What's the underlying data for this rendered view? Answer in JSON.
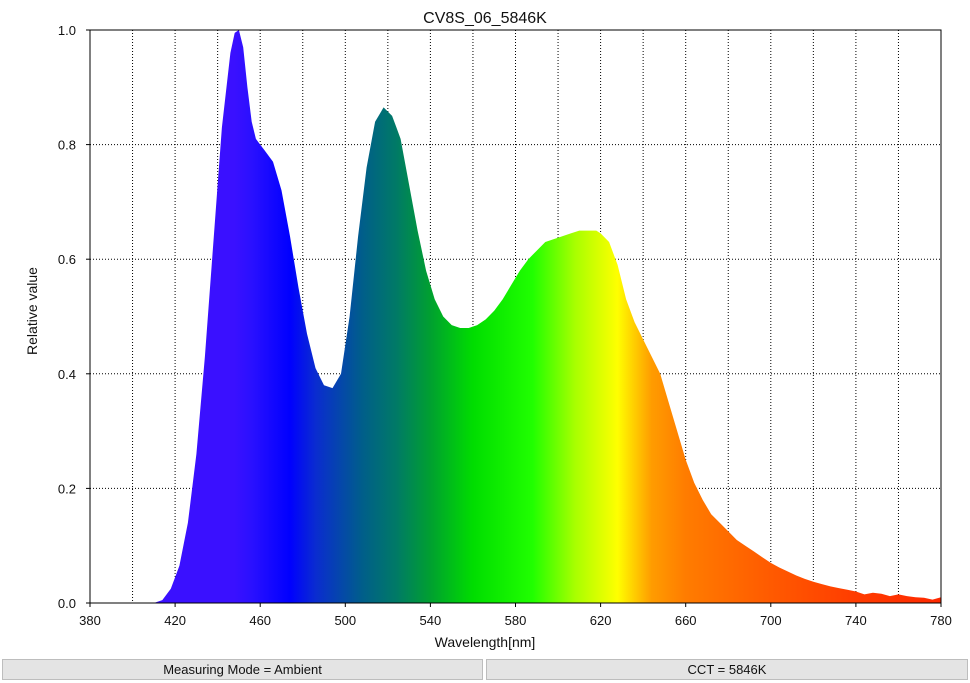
{
  "chart_data": {
    "type": "area",
    "title": "CV8S_06_5846K",
    "xlabel": "Wavelength[nm]",
    "ylabel": "Relative value",
    "xlim": [
      380,
      780
    ],
    "ylim": [
      0,
      1.0
    ],
    "xticks": [
      "380",
      "420",
      "460",
      "500",
      "540",
      "580",
      "620",
      "660",
      "700",
      "740",
      "780"
    ],
    "yticks": [
      "0.0",
      "0.2",
      "0.4",
      "0.6",
      "0.8",
      "1.0"
    ],
    "grid": true,
    "fill": "visible-spectrum gradient",
    "series": [
      {
        "x": [
          380,
          410,
          414,
          418,
          422,
          426,
          430,
          434,
          438,
          442,
          446,
          448,
          450,
          452,
          454,
          456,
          458,
          460,
          462,
          466,
          470,
          474,
          478,
          482,
          486,
          490,
          494,
          498,
          502,
          506,
          510,
          514,
          518,
          522,
          524,
          526,
          530,
          534,
          538,
          542,
          546,
          550,
          554,
          558,
          562,
          566,
          570,
          574,
          578,
          582,
          586,
          590,
          594,
          598,
          602,
          606,
          610,
          614,
          618,
          620,
          624,
          628,
          632,
          636,
          640,
          644,
          648,
          652,
          656,
          660,
          664,
          668,
          672,
          676,
          680,
          684,
          688,
          692,
          696,
          700,
          704,
          708,
          712,
          716,
          720,
          724,
          728,
          732,
          736,
          740,
          744,
          748,
          752,
          756,
          760,
          764,
          768,
          772,
          776,
          780
        ],
        "y": [
          0,
          0,
          0.005,
          0.025,
          0.065,
          0.14,
          0.26,
          0.43,
          0.63,
          0.83,
          0.96,
          0.995,
          1.0,
          0.97,
          0.9,
          0.84,
          0.81,
          0.8,
          0.79,
          0.77,
          0.72,
          0.64,
          0.55,
          0.47,
          0.41,
          0.38,
          0.375,
          0.4,
          0.5,
          0.64,
          0.76,
          0.84,
          0.865,
          0.85,
          0.83,
          0.81,
          0.73,
          0.65,
          0.58,
          0.53,
          0.5,
          0.485,
          0.48,
          0.48,
          0.485,
          0.495,
          0.51,
          0.53,
          0.555,
          0.58,
          0.6,
          0.615,
          0.63,
          0.635,
          0.64,
          0.645,
          0.65,
          0.65,
          0.65,
          0.645,
          0.63,
          0.59,
          0.53,
          0.49,
          0.46,
          0.43,
          0.4,
          0.35,
          0.3,
          0.25,
          0.21,
          0.18,
          0.155,
          0.14,
          0.125,
          0.11,
          0.1,
          0.09,
          0.08,
          0.07,
          0.062,
          0.055,
          0.048,
          0.042,
          0.037,
          0.033,
          0.029,
          0.026,
          0.023,
          0.02,
          0.015,
          0.018,
          0.016,
          0.012,
          0.015,
          0.012,
          0.01,
          0.009,
          0.006,
          0.01
        ]
      }
    ]
  },
  "status": {
    "measuring_mode": "Measuring Mode = Ambient",
    "cct": "CCT = 5846K"
  },
  "colors": {
    "grid": "#000000",
    "axis": "#000000",
    "status_bg": "#e4e4e4"
  }
}
